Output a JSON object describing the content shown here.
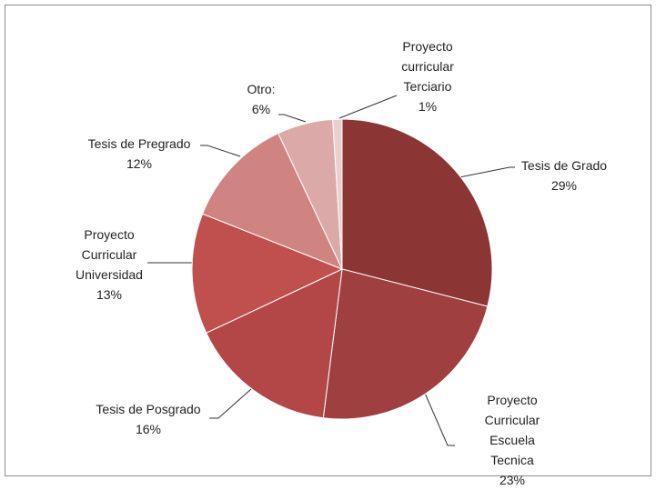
{
  "chart_data": {
    "type": "pie",
    "categories": [
      "Tesis de Grado",
      "Proyecto Curricular Escuela Tecnica",
      "Tesis de Posgrado",
      "Proyecto Curricular Universidad",
      "Tesis de Pregrado",
      "Otro:",
      "Proyecto curricular Terciario"
    ],
    "values": [
      29,
      23,
      16,
      13,
      12,
      6,
      1
    ],
    "value_labels": [
      "29%",
      "23%",
      "16%",
      "13%",
      "12%",
      "6%",
      "1%"
    ],
    "colors": [
      "#8b3535",
      "#a03f3f",
      "#b34646",
      "#c0504d",
      "#cf8481",
      "#dba9a7",
      "#ebcfce"
    ]
  }
}
